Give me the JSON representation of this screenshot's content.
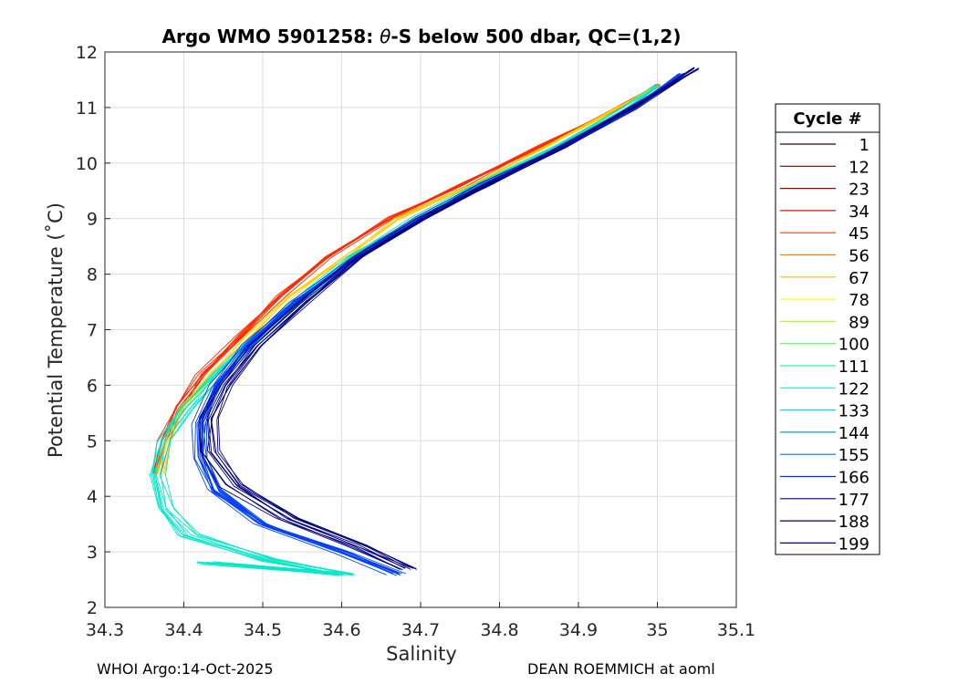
{
  "chart_data": {
    "type": "line",
    "title_prefix": "Argo WMO 5901258: ",
    "title_theta": "θ",
    "title_suffix": "-S below 500 dbar,  QC=(1,2)",
    "xlabel": "Salinity",
    "ylabel": "Potential Temperature (˚C)",
    "xlim": [
      34.3,
      35.1
    ],
    "ylim": [
      2,
      12
    ],
    "xticks": [
      "34.3",
      "34.4",
      "34.5",
      "34.6",
      "34.7",
      "34.8",
      "34.9",
      "35",
      "35.1"
    ],
    "yticks": [
      "2",
      "3",
      "4",
      "5",
      "6",
      "7",
      "8",
      "9",
      "10",
      "11",
      "12"
    ],
    "grid": true,
    "legend": {
      "title": "Cycle #",
      "placement": "outside-right",
      "entries": [
        {
          "label": "1",
          "color": "#3a0000"
        },
        {
          "label": "12",
          "color": "#6e0000"
        },
        {
          "label": "23",
          "color": "#a80000"
        },
        {
          "label": "34",
          "color": "#dd1010"
        },
        {
          "label": "45",
          "color": "#ff3b00"
        },
        {
          "label": "56",
          "color": "#ff7a00"
        },
        {
          "label": "67",
          "color": "#ffb800"
        },
        {
          "label": "78",
          "color": "#ffff00"
        },
        {
          "label": "89",
          "color": "#b0ff20"
        },
        {
          "label": "100",
          "color": "#50ff50"
        },
        {
          "label": "111",
          "color": "#20ffa0"
        },
        {
          "label": "122",
          "color": "#00ffd8"
        },
        {
          "label": "133",
          "color": "#00d8ff"
        },
        {
          "label": "144",
          "color": "#00a0e0"
        },
        {
          "label": "155",
          "color": "#0070ff"
        },
        {
          "label": "166",
          "color": "#0030e0"
        },
        {
          "label": "177",
          "color": "#000090"
        },
        {
          "label": "188",
          "color": "#000050"
        },
        {
          "label": "199",
          "color": "#000070"
        }
      ]
    },
    "profile_families": [
      {
        "name_hint": "early cycles",
        "color": "#ff2a00",
        "count": 9,
        "points": [
          [
            34.36,
            4.4
          ],
          [
            34.37,
            5.0
          ],
          [
            34.39,
            5.6
          ],
          [
            34.42,
            6.2
          ],
          [
            34.47,
            6.9
          ],
          [
            34.52,
            7.6
          ],
          [
            34.58,
            8.3
          ],
          [
            34.66,
            9.0
          ],
          [
            34.75,
            9.6
          ],
          [
            34.85,
            10.3
          ],
          [
            34.95,
            11.0
          ],
          [
            35.0,
            11.4
          ]
        ]
      },
      {
        "name_hint": "mid cycles",
        "color": "#ffd000",
        "count": 6,
        "points": [
          [
            34.36,
            4.4
          ],
          [
            34.37,
            5.0
          ],
          [
            34.39,
            5.6
          ],
          [
            34.43,
            6.2
          ],
          [
            34.48,
            6.9
          ],
          [
            34.53,
            7.6
          ],
          [
            34.6,
            8.3
          ],
          [
            34.67,
            9.0
          ],
          [
            34.76,
            9.6
          ],
          [
            34.86,
            10.3
          ],
          [
            34.95,
            11.0
          ],
          [
            35.0,
            11.4
          ]
        ]
      },
      {
        "name_hint": "cyan cycles",
        "color": "#00e8c8",
        "count": 10,
        "points": [
          [
            34.42,
            2.8
          ],
          [
            34.6,
            2.6
          ],
          [
            34.5,
            2.85
          ],
          [
            34.4,
            3.3
          ],
          [
            34.37,
            3.8
          ],
          [
            34.36,
            4.4
          ],
          [
            34.37,
            5.0
          ],
          [
            34.4,
            5.6
          ],
          [
            34.44,
            6.2
          ],
          [
            34.49,
            6.9
          ],
          [
            34.55,
            7.6
          ],
          [
            34.61,
            8.3
          ],
          [
            34.69,
            9.0
          ],
          [
            34.77,
            9.6
          ],
          [
            34.87,
            10.3
          ],
          [
            34.96,
            11.0
          ],
          [
            35.0,
            11.4
          ]
        ]
      },
      {
        "name_hint": "late cycles",
        "color": "#0040ff",
        "count": 14,
        "points": [
          [
            34.67,
            2.6
          ],
          [
            34.6,
            3.0
          ],
          [
            34.5,
            3.5
          ],
          [
            34.44,
            4.1
          ],
          [
            34.42,
            4.7
          ],
          [
            34.42,
            5.3
          ],
          [
            34.44,
            6.0
          ],
          [
            34.48,
            6.7
          ],
          [
            34.54,
            7.5
          ],
          [
            34.62,
            8.3
          ],
          [
            34.7,
            9.0
          ],
          [
            34.78,
            9.6
          ],
          [
            34.88,
            10.3
          ],
          [
            34.97,
            11.0
          ],
          [
            35.03,
            11.6
          ]
        ]
      },
      {
        "name_hint": "last cycles",
        "color": "#000080",
        "count": 10,
        "points": [
          [
            34.68,
            2.7
          ],
          [
            34.62,
            3.1
          ],
          [
            34.53,
            3.6
          ],
          [
            34.46,
            4.2
          ],
          [
            34.43,
            4.8
          ],
          [
            34.43,
            5.4
          ],
          [
            34.45,
            6.0
          ],
          [
            34.49,
            6.7
          ],
          [
            34.55,
            7.5
          ],
          [
            34.62,
            8.3
          ],
          [
            34.7,
            9.0
          ],
          [
            34.78,
            9.6
          ],
          [
            34.88,
            10.3
          ],
          [
            34.97,
            11.0
          ],
          [
            35.05,
            11.7
          ]
        ]
      }
    ]
  },
  "footer": {
    "left": "WHOI Argo:14-Oct-2025",
    "right": "DEAN ROEMMICH at aoml"
  }
}
